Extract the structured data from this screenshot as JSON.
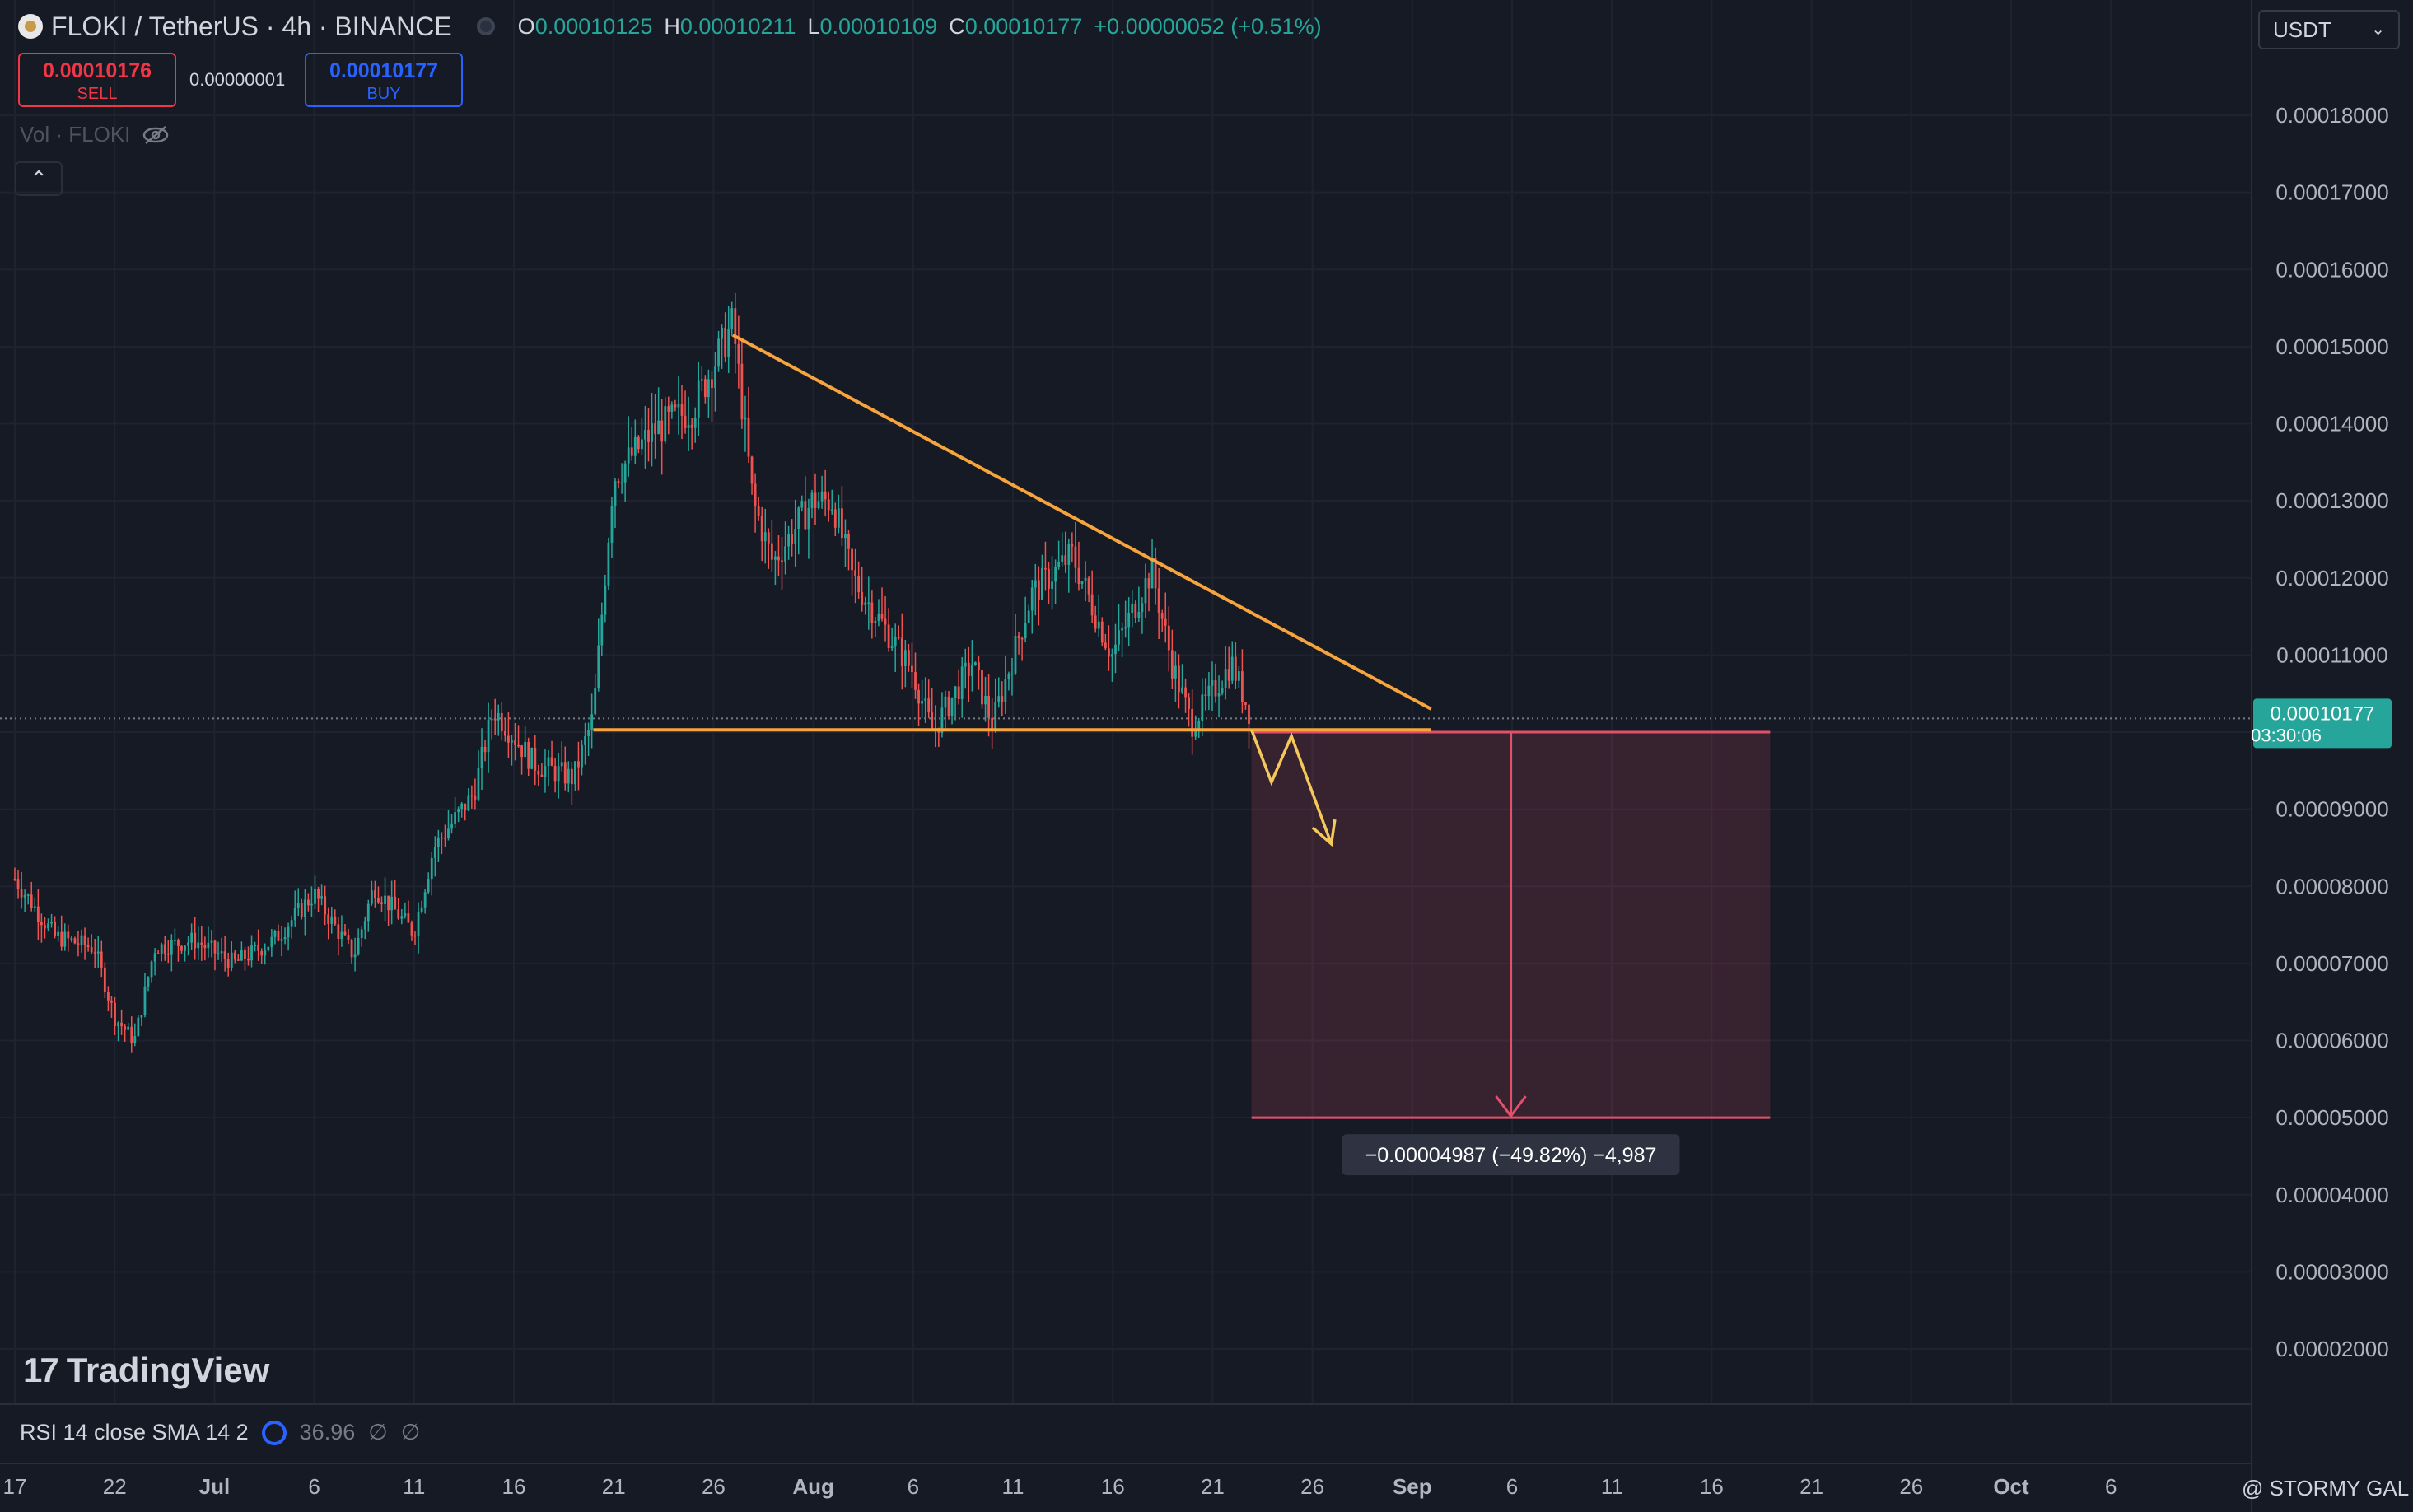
{
  "header": {
    "symbol": "FLOKI / TetherUS · 4h · BINANCE",
    "ohlc": [
      {
        "k": "O",
        "v": "0.00010125"
      },
      {
        "k": "H",
        "v": "0.00010211"
      },
      {
        "k": "L",
        "v": "0.00010109"
      },
      {
        "k": "C",
        "v": "0.00010177"
      }
    ],
    "change": "+0.00000052 (+0.51%)"
  },
  "trade": {
    "sell_price": "0.00010176",
    "sell_label": "SELL",
    "spread": "0.00000001",
    "buy_price": "0.00010177",
    "buy_label": "BUY"
  },
  "volume_label": "Vol · FLOKI",
  "collapse_icon": "chevron-up-icon",
  "currency": "USDT",
  "price_label": {
    "price": "0.00010177",
    "countdown": "03:30:06"
  },
  "measure_label": "−0.00004987 (−49.82%) −4,987",
  "branding": "TradingView",
  "rsi": {
    "label": "RSI 14 close SMA 14 2",
    "value": "36.96",
    "na1": "∅",
    "na2": "∅"
  },
  "watermark": "@ STORMY GAL",
  "colors": {
    "background": "#161a25",
    "up": "#26a69a",
    "down": "#ef5350",
    "trendline": "#f7a43d",
    "measure": "#e4506a",
    "grid": "#1f2330"
  },
  "chart_data": {
    "type": "candlestick",
    "y_axis_ticks": [
      "0.00018000",
      "0.00017000",
      "0.00016000",
      "0.00015000",
      "0.00014000",
      "0.00013000",
      "0.00012000",
      "0.00011000",
      "0.00010000",
      "0.00009000",
      "0.00008000",
      "0.00007000",
      "0.00006000",
      "0.00005000",
      "0.00004000",
      "0.00003000",
      "0.00002000"
    ],
    "x_axis_ticks": [
      "17",
      "22",
      "Jul",
      "6",
      "11",
      "16",
      "21",
      "26",
      "Aug",
      "6",
      "11",
      "16",
      "21",
      "26",
      "Sep",
      "6",
      "11",
      "16",
      "21",
      "26",
      "Oct",
      "6"
    ],
    "ylim": [
      1.4e-05,
      0.000188
    ],
    "price_path": [
      {
        "date": "Jun 17",
        "price": 8.1e-05
      },
      {
        "date": "Jun 19",
        "price": 7.35e-05
      },
      {
        "date": "Jun 21",
        "price": 7.2e-05
      },
      {
        "date": "Jun 22",
        "price": 6.3e-05
      },
      {
        "date": "Jun 23",
        "price": 6e-05
      },
      {
        "date": "Jun 24",
        "price": 7.2e-05
      },
      {
        "date": "Jun 26",
        "price": 7.3e-05
      },
      {
        "date": "Jun 28",
        "price": 7e-05
      },
      {
        "date": "Jun 30",
        "price": 7.3e-05
      },
      {
        "date": "Jul 2",
        "price": 7.9e-05
      },
      {
        "date": "Jul 4",
        "price": 7.1e-05
      },
      {
        "date": "Jul 5",
        "price": 8e-05
      },
      {
        "date": "Jul 7",
        "price": 7.4e-05
      },
      {
        "date": "Jul 8",
        "price": 8.5e-05
      },
      {
        "date": "Jul 10",
        "price": 9.2e-05
      },
      {
        "date": "Jul 11",
        "price": 0.000103
      },
      {
        "date": "Jul 13",
        "price": 9.6e-05
      },
      {
        "date": "Jul 15",
        "price": 9.4e-05
      },
      {
        "date": "Jul 16",
        "price": 0.000102
      },
      {
        "date": "Jul 17",
        "price": 0.000133
      },
      {
        "date": "Jul 19",
        "price": 0.000139
      },
      {
        "date": "Jul 21",
        "price": 0.000142
      },
      {
        "date": "Jul 23",
        "price": 0.000153
      },
      {
        "date": "Jul 24",
        "price": 0.00013
      },
      {
        "date": "Jul 25",
        "price": 0.000122
      },
      {
        "date": "Jul 27",
        "price": 0.00013
      },
      {
        "date": "Jul 28",
        "price": 0.00013
      },
      {
        "date": "Jul 29",
        "price": 0.00012
      },
      {
        "date": "Aug 1",
        "price": 0.000108
      },
      {
        "date": "Aug 2",
        "price": 0.0001
      },
      {
        "date": "Aug 4",
        "price": 0.000109
      },
      {
        "date": "Aug 5",
        "price": 0.000101
      },
      {
        "date": "Aug 7",
        "price": 0.000118
      },
      {
        "date": "Aug 9",
        "price": 0.000123
      },
      {
        "date": "Aug 11",
        "price": 0.00011
      },
      {
        "date": "Aug 13",
        "price": 0.000121
      },
      {
        "date": "Aug 14",
        "price": 0.000109
      },
      {
        "date": "Aug 15",
        "price": 0.000101
      },
      {
        "date": "Aug 17",
        "price": 0.000109
      },
      {
        "date": "Aug 18",
        "price": 0.0001018
      }
    ],
    "current_price": 0.00010177,
    "drawings": {
      "descending_trendline": {
        "start": {
          "date": "Jul 23",
          "price": 0.0001515
        },
        "end": {
          "date": "Aug 27",
          "price": 0.000103
        }
      },
      "support_line": {
        "start": {
          "date": "Jul 16",
          "price": 0.0001003
        },
        "end": {
          "date": "Aug 27",
          "price": 0.0001003
        }
      },
      "projection_arrow": [
        {
          "date": "Aug 18",
          "price": 0.0001003
        },
        {
          "date": "Aug 19",
          "price": 9.35e-05
        },
        {
          "date": "Aug 20",
          "price": 9.95e-05
        },
        {
          "date": "Aug 22",
          "price": 8.55e-05
        }
      ],
      "price_range_measure": {
        "from_date": "Aug 18",
        "to_date": "Sep 13",
        "from_price": 0.0001,
        "to_price": 5e-05,
        "change": -4.987e-05,
        "percent": -49.82
      }
    }
  }
}
